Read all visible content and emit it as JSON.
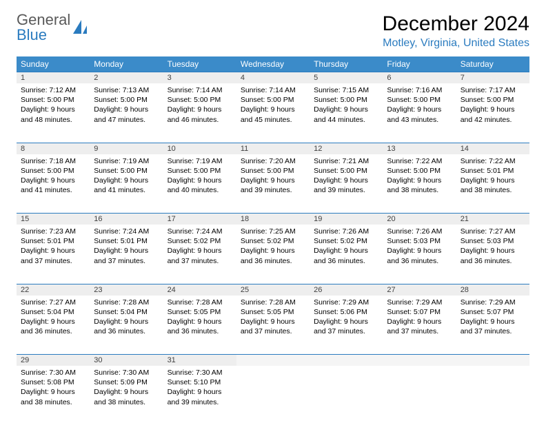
{
  "logo": {
    "word1": "General",
    "word2": "Blue"
  },
  "title": "December 2024",
  "location": "Motley, Virginia, United States",
  "colors": {
    "header_bg": "#3b8bc9",
    "header_text": "#ffffff",
    "accent": "#2a7bbf",
    "daynum_bg": "#eeeeee",
    "logo_gray": "#595959"
  },
  "dayHeaders": [
    "Sunday",
    "Monday",
    "Tuesday",
    "Wednesday",
    "Thursday",
    "Friday",
    "Saturday"
  ],
  "weeks": [
    [
      {
        "n": "1",
        "sr": "Sunrise: 7:12 AM",
        "ss": "Sunset: 5:00 PM",
        "d1": "Daylight: 9 hours",
        "d2": "and 48 minutes."
      },
      {
        "n": "2",
        "sr": "Sunrise: 7:13 AM",
        "ss": "Sunset: 5:00 PM",
        "d1": "Daylight: 9 hours",
        "d2": "and 47 minutes."
      },
      {
        "n": "3",
        "sr": "Sunrise: 7:14 AM",
        "ss": "Sunset: 5:00 PM",
        "d1": "Daylight: 9 hours",
        "d2": "and 46 minutes."
      },
      {
        "n": "4",
        "sr": "Sunrise: 7:14 AM",
        "ss": "Sunset: 5:00 PM",
        "d1": "Daylight: 9 hours",
        "d2": "and 45 minutes."
      },
      {
        "n": "5",
        "sr": "Sunrise: 7:15 AM",
        "ss": "Sunset: 5:00 PM",
        "d1": "Daylight: 9 hours",
        "d2": "and 44 minutes."
      },
      {
        "n": "6",
        "sr": "Sunrise: 7:16 AM",
        "ss": "Sunset: 5:00 PM",
        "d1": "Daylight: 9 hours",
        "d2": "and 43 minutes."
      },
      {
        "n": "7",
        "sr": "Sunrise: 7:17 AM",
        "ss": "Sunset: 5:00 PM",
        "d1": "Daylight: 9 hours",
        "d2": "and 42 minutes."
      }
    ],
    [
      {
        "n": "8",
        "sr": "Sunrise: 7:18 AM",
        "ss": "Sunset: 5:00 PM",
        "d1": "Daylight: 9 hours",
        "d2": "and 41 minutes."
      },
      {
        "n": "9",
        "sr": "Sunrise: 7:19 AM",
        "ss": "Sunset: 5:00 PM",
        "d1": "Daylight: 9 hours",
        "d2": "and 41 minutes."
      },
      {
        "n": "10",
        "sr": "Sunrise: 7:19 AM",
        "ss": "Sunset: 5:00 PM",
        "d1": "Daylight: 9 hours",
        "d2": "and 40 minutes."
      },
      {
        "n": "11",
        "sr": "Sunrise: 7:20 AM",
        "ss": "Sunset: 5:00 PM",
        "d1": "Daylight: 9 hours",
        "d2": "and 39 minutes."
      },
      {
        "n": "12",
        "sr": "Sunrise: 7:21 AM",
        "ss": "Sunset: 5:00 PM",
        "d1": "Daylight: 9 hours",
        "d2": "and 39 minutes."
      },
      {
        "n": "13",
        "sr": "Sunrise: 7:22 AM",
        "ss": "Sunset: 5:00 PM",
        "d1": "Daylight: 9 hours",
        "d2": "and 38 minutes."
      },
      {
        "n": "14",
        "sr": "Sunrise: 7:22 AM",
        "ss": "Sunset: 5:01 PM",
        "d1": "Daylight: 9 hours",
        "d2": "and 38 minutes."
      }
    ],
    [
      {
        "n": "15",
        "sr": "Sunrise: 7:23 AM",
        "ss": "Sunset: 5:01 PM",
        "d1": "Daylight: 9 hours",
        "d2": "and 37 minutes."
      },
      {
        "n": "16",
        "sr": "Sunrise: 7:24 AM",
        "ss": "Sunset: 5:01 PM",
        "d1": "Daylight: 9 hours",
        "d2": "and 37 minutes."
      },
      {
        "n": "17",
        "sr": "Sunrise: 7:24 AM",
        "ss": "Sunset: 5:02 PM",
        "d1": "Daylight: 9 hours",
        "d2": "and 37 minutes."
      },
      {
        "n": "18",
        "sr": "Sunrise: 7:25 AM",
        "ss": "Sunset: 5:02 PM",
        "d1": "Daylight: 9 hours",
        "d2": "and 36 minutes."
      },
      {
        "n": "19",
        "sr": "Sunrise: 7:26 AM",
        "ss": "Sunset: 5:02 PM",
        "d1": "Daylight: 9 hours",
        "d2": "and 36 minutes."
      },
      {
        "n": "20",
        "sr": "Sunrise: 7:26 AM",
        "ss": "Sunset: 5:03 PM",
        "d1": "Daylight: 9 hours",
        "d2": "and 36 minutes."
      },
      {
        "n": "21",
        "sr": "Sunrise: 7:27 AM",
        "ss": "Sunset: 5:03 PM",
        "d1": "Daylight: 9 hours",
        "d2": "and 36 minutes."
      }
    ],
    [
      {
        "n": "22",
        "sr": "Sunrise: 7:27 AM",
        "ss": "Sunset: 5:04 PM",
        "d1": "Daylight: 9 hours",
        "d2": "and 36 minutes."
      },
      {
        "n": "23",
        "sr": "Sunrise: 7:28 AM",
        "ss": "Sunset: 5:04 PM",
        "d1": "Daylight: 9 hours",
        "d2": "and 36 minutes."
      },
      {
        "n": "24",
        "sr": "Sunrise: 7:28 AM",
        "ss": "Sunset: 5:05 PM",
        "d1": "Daylight: 9 hours",
        "d2": "and 36 minutes."
      },
      {
        "n": "25",
        "sr": "Sunrise: 7:28 AM",
        "ss": "Sunset: 5:05 PM",
        "d1": "Daylight: 9 hours",
        "d2": "and 37 minutes."
      },
      {
        "n": "26",
        "sr": "Sunrise: 7:29 AM",
        "ss": "Sunset: 5:06 PM",
        "d1": "Daylight: 9 hours",
        "d2": "and 37 minutes."
      },
      {
        "n": "27",
        "sr": "Sunrise: 7:29 AM",
        "ss": "Sunset: 5:07 PM",
        "d1": "Daylight: 9 hours",
        "d2": "and 37 minutes."
      },
      {
        "n": "28",
        "sr": "Sunrise: 7:29 AM",
        "ss": "Sunset: 5:07 PM",
        "d1": "Daylight: 9 hours",
        "d2": "and 37 minutes."
      }
    ],
    [
      {
        "n": "29",
        "sr": "Sunrise: 7:30 AM",
        "ss": "Sunset: 5:08 PM",
        "d1": "Daylight: 9 hours",
        "d2": "and 38 minutes."
      },
      {
        "n": "30",
        "sr": "Sunrise: 7:30 AM",
        "ss": "Sunset: 5:09 PM",
        "d1": "Daylight: 9 hours",
        "d2": "and 38 minutes."
      },
      {
        "n": "31",
        "sr": "Sunrise: 7:30 AM",
        "ss": "Sunset: 5:10 PM",
        "d1": "Daylight: 9 hours",
        "d2": "and 39 minutes."
      },
      null,
      null,
      null,
      null
    ]
  ]
}
